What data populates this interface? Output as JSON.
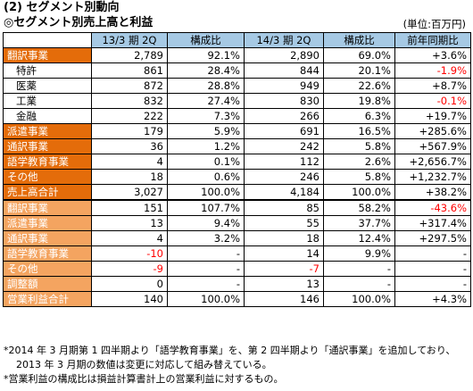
{
  "section_title": "(2) セグメント別動向",
  "subsection_title": "◎セグメント別売上高と利益",
  "unit": "(単位:百万円)",
  "headers": {
    "blank": "",
    "prev": "13/3 期 2Q",
    "prev_ratio": "構成比",
    "curr": "14/3 期 2Q",
    "curr_ratio": "構成比",
    "yoy": "前年同期比"
  },
  "rows": [
    {
      "name": "翻訳事業",
      "type": "sales-main",
      "prev": "2,789",
      "prev_ratio": "92.1%",
      "curr": "2,890",
      "curr_ratio": "69.0%",
      "yoy": "+3.6%",
      "red": []
    },
    {
      "name": "特許",
      "type": "sub",
      "prev": "861",
      "prev_ratio": "28.4%",
      "curr": "844",
      "curr_ratio": "20.1%",
      "yoy": "-1.9%",
      "red": [
        "yoy"
      ]
    },
    {
      "name": "医薬",
      "type": "sub",
      "prev": "872",
      "prev_ratio": "28.8%",
      "curr": "949",
      "curr_ratio": "22.6%",
      "yoy": "+8.7%",
      "red": []
    },
    {
      "name": "工業",
      "type": "sub",
      "prev": "832",
      "prev_ratio": "27.4%",
      "curr": "830",
      "curr_ratio": "19.8%",
      "yoy": "-0.1%",
      "red": [
        "yoy"
      ]
    },
    {
      "name": "金融",
      "type": "sub",
      "prev": "222",
      "prev_ratio": "7.3%",
      "curr": "266",
      "curr_ratio": "6.3%",
      "yoy": "+19.7%",
      "red": []
    },
    {
      "name": "派遣事業",
      "type": "sales-main",
      "prev": "179",
      "prev_ratio": "5.9%",
      "curr": "691",
      "curr_ratio": "16.5%",
      "yoy": "+285.6%",
      "red": []
    },
    {
      "name": "通訳事業",
      "type": "sales-main",
      "prev": "36",
      "prev_ratio": "1.2%",
      "curr": "242",
      "curr_ratio": "5.8%",
      "yoy": "+567.9%",
      "red": []
    },
    {
      "name": "語学教育事業",
      "type": "sales-main",
      "prev": "4",
      "prev_ratio": "0.1%",
      "curr": "112",
      "curr_ratio": "2.6%",
      "yoy": "+2,656.7%",
      "red": []
    },
    {
      "name": "その他",
      "type": "sales-main",
      "prev": "18",
      "prev_ratio": "0.6%",
      "curr": "246",
      "curr_ratio": "5.8%",
      "yoy": "+1,232.7%",
      "red": []
    },
    {
      "name": "売上高合計",
      "type": "total",
      "prev": "3,027",
      "prev_ratio": "100.0%",
      "curr": "4,184",
      "curr_ratio": "100.0%",
      "yoy": "+38.2%",
      "red": []
    },
    {
      "name": "翻訳事業",
      "type": "profit-main",
      "prev": "151",
      "prev_ratio": "107.7%",
      "curr": "85",
      "curr_ratio": "58.2%",
      "yoy": "-43.6%",
      "red": [
        "yoy"
      ]
    },
    {
      "name": "派遣事業",
      "type": "profit-main",
      "prev": "13",
      "prev_ratio": "9.4%",
      "curr": "55",
      "curr_ratio": "37.7%",
      "yoy": "+317.4%",
      "red": []
    },
    {
      "name": "通訳事業",
      "type": "profit-main",
      "prev": "4",
      "prev_ratio": "3.2%",
      "curr": "18",
      "curr_ratio": "12.4%",
      "yoy": "+297.5%",
      "red": []
    },
    {
      "name": "語学教育事業",
      "type": "profit-main",
      "prev": "-10",
      "prev_ratio": "-",
      "curr": "14",
      "curr_ratio": "9.9%",
      "yoy": "-",
      "red": [
        "prev"
      ]
    },
    {
      "name": "その他",
      "type": "profit-main",
      "prev": "-9",
      "prev_ratio": "-",
      "curr": "-7",
      "curr_ratio": "-",
      "yoy": "-",
      "red": [
        "prev",
        "curr"
      ]
    },
    {
      "name": "調整額",
      "type": "profit-main",
      "prev": "0",
      "prev_ratio": "-",
      "curr": "13",
      "curr_ratio": "-",
      "yoy": "-",
      "red": []
    },
    {
      "name": "営業利益合計",
      "type": "profit-total",
      "prev": "140",
      "prev_ratio": "100.0%",
      "curr": "146",
      "curr_ratio": "100.0%",
      "yoy": "+4.3%",
      "red": []
    }
  ],
  "notes": {
    "line1": "*2014 年 3 月期第 1 四半期より「語学教育事業」を、第 2 四半期より「通訳事業」を追加しており、",
    "line2": "2013 年 3 月期の数値は変更に対応して組み替えている。",
    "line3": "*営業利益の構成比は損益計算書計上の営業利益に対するもの。"
  },
  "colors": {
    "sales_label_bg": "#e46c0a",
    "profit_label_bg": "#f4a460",
    "header_bg": "#a6c9e4",
    "negative_text": "#ff0000"
  }
}
